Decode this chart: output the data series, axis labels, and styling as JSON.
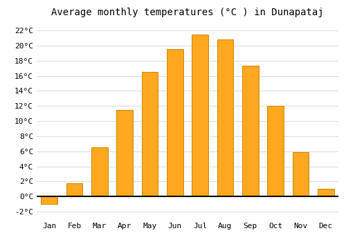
{
  "title": "Average monthly temperatures (°C ) in Dunapataj",
  "months": [
    "Jan",
    "Feb",
    "Mar",
    "Apr",
    "May",
    "Jun",
    "Jul",
    "Aug",
    "Sep",
    "Oct",
    "Nov",
    "Dec"
  ],
  "values": [
    -1.0,
    1.8,
    6.5,
    11.5,
    16.5,
    19.5,
    21.5,
    20.8,
    17.3,
    12.0,
    5.9,
    1.0
  ],
  "bar_color": "#FFA820",
  "bar_edge_color": "#CC8800",
  "background_color": "#FFFFFF",
  "plot_bg_color": "#FFFFFF",
  "grid_color": "#DDDDDD",
  "ylim": [
    -3,
    23
  ],
  "yticks": [
    -2,
    0,
    2,
    4,
    6,
    8,
    10,
    12,
    14,
    16,
    18,
    20,
    22
  ],
  "title_fontsize": 10,
  "tick_fontsize": 8,
  "zero_line_color": "#000000",
  "bar_width": 0.65
}
